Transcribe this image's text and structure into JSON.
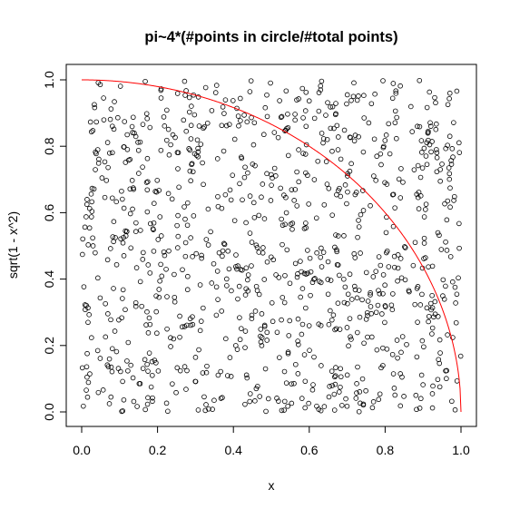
{
  "chart_data": {
    "type": "scatter",
    "title": "pi~4*(#points in circle/#total points)",
    "xlabel": "x",
    "ylabel": "sqrt(1 - x^2)",
    "xlim": [
      0,
      1
    ],
    "ylim": [
      0,
      1
    ],
    "x_ticks": [
      "0.0",
      "0.2",
      "0.4",
      "0.6",
      "0.8",
      "1.0"
    ],
    "y_ticks": [
      "0.0",
      "0.2",
      "0.4",
      "0.6",
      "0.8",
      "1.0"
    ],
    "grid": false,
    "legend": "none",
    "n_points": 1000,
    "point_symbol": "open-circle",
    "point_color": "#000000",
    "curve": {
      "name": "quarter circle y = sqrt(1 - x^2)",
      "color": "#ff0000",
      "function": "sqrt(1 - x^2)",
      "x_range": [
        0,
        1
      ]
    },
    "note_on_points": "1000 approximately uniform random points on the unit square; individual coordinates are not legible and are regenerated deterministically in the drawing script"
  }
}
